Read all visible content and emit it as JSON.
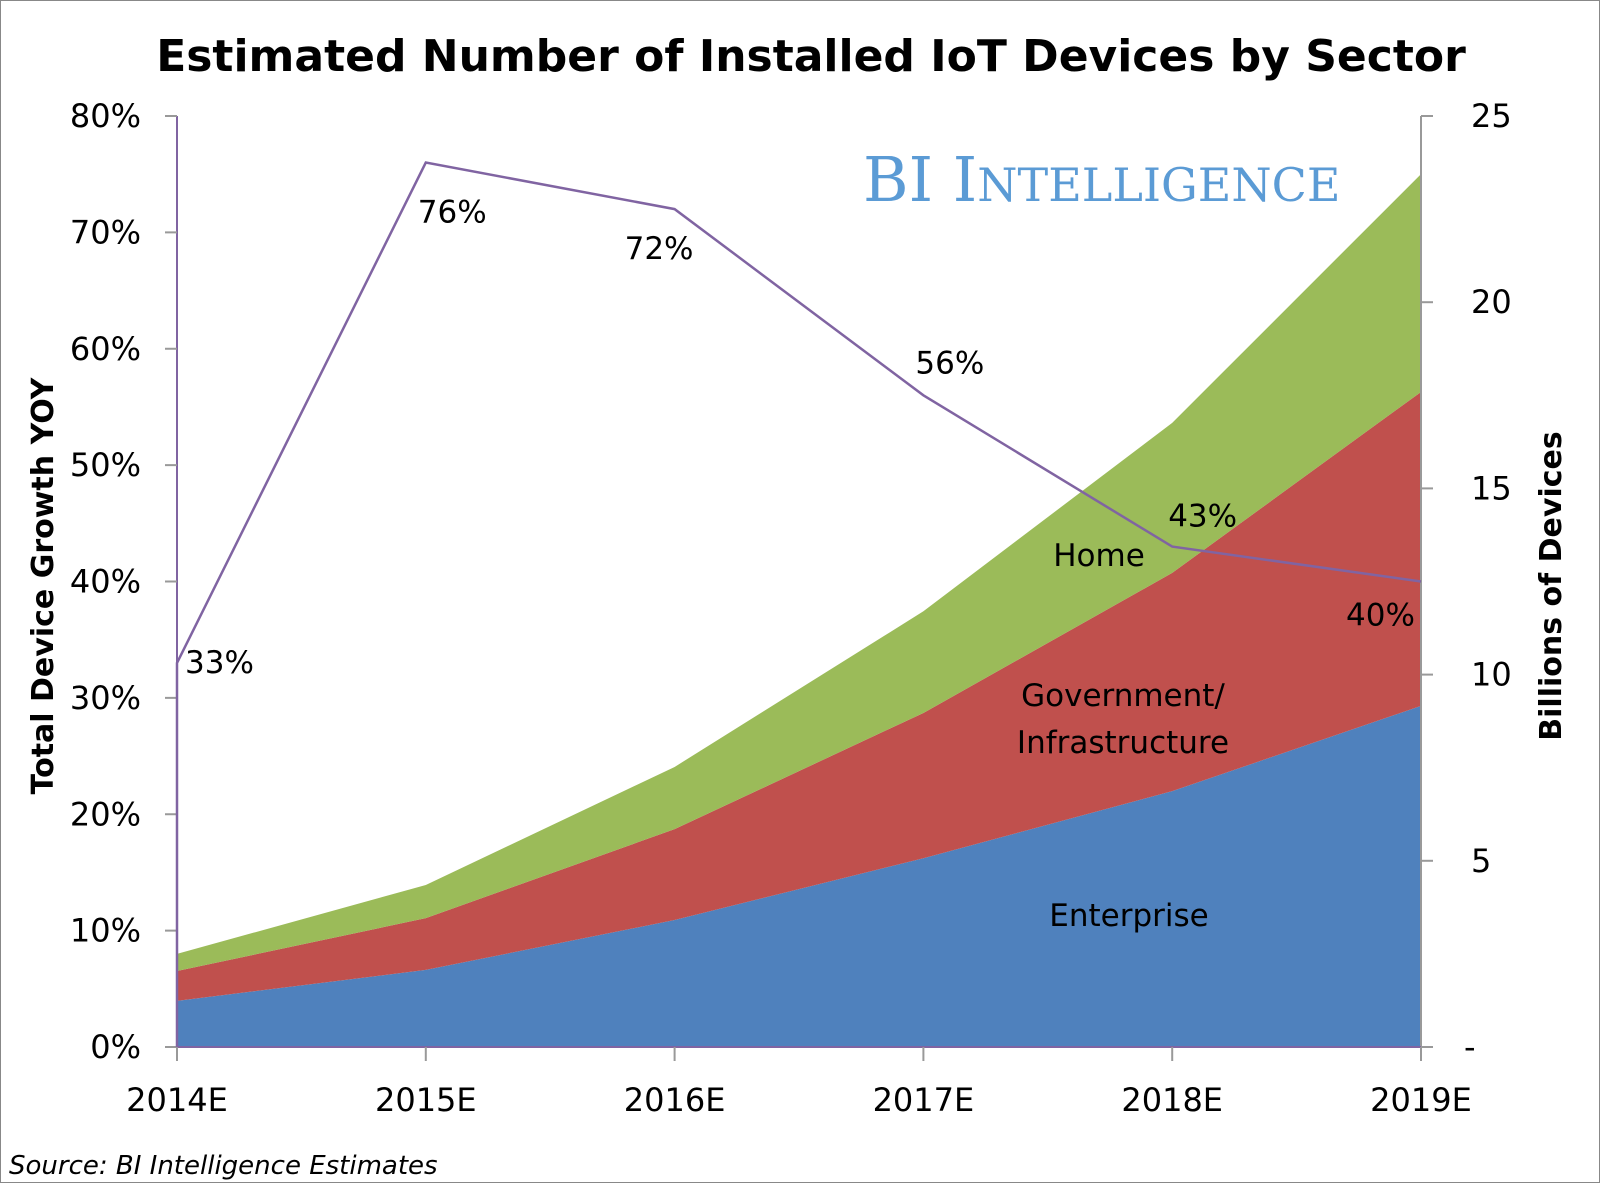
{
  "chart_data": {
    "type": "area",
    "title": "Estimated Number of Installed IoT Devices by Sector",
    "categories": [
      "2014E",
      "2015E",
      "2016E",
      "2017E",
      "2018E",
      "2019E"
    ],
    "ylabel_left": "Total Device Growth YOY",
    "ylabel_right": "Billions of Devices",
    "ylim_left": [
      0,
      80
    ],
    "ylim_right": [
      0,
      25
    ],
    "left_ticks": [
      "0%",
      "10%",
      "20%",
      "30%",
      "40%",
      "50%",
      "60%",
      "70%",
      "80%"
    ],
    "right_ticks": [
      "-",
      "5",
      "10",
      "15",
      "20",
      "25"
    ],
    "stacked": true,
    "series": [
      {
        "name": "Enterprise",
        "axis": "right",
        "color": "#4f81bd",
        "values": [
          1.24,
          2.07,
          3.41,
          5.07,
          6.87,
          9.16
        ]
      },
      {
        "name": "Government/ Infrastructure",
        "name_lines": [
          "Government/",
          "Infrastructure"
        ],
        "axis": "right",
        "color": "#c0504d",
        "values": [
          0.8,
          1.39,
          2.44,
          3.9,
          5.86,
          8.43
        ]
      },
      {
        "name": "Home",
        "axis": "right",
        "color": "#9bbb59",
        "values": [
          0.46,
          0.89,
          1.67,
          2.73,
          4.03,
          5.85
        ]
      }
    ],
    "line": {
      "axis": "left",
      "type": "line",
      "color": "#8064a2",
      "values": [
        33,
        76,
        72,
        56,
        43,
        40
      ],
      "labels": [
        "33%",
        "76%",
        "72%",
        "56%",
        "43%",
        "40%"
      ]
    },
    "grid": false,
    "legend": "inline labels"
  },
  "watermark": "BI Intelligence",
  "source": "Source: BI Intelligence Estimates"
}
